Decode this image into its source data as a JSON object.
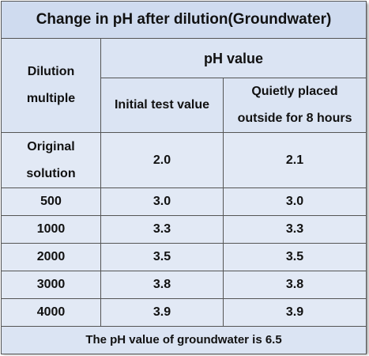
{
  "title": "Change in pH after dilution(Groundwater)",
  "header": {
    "dilution": [
      "Dilution",
      "multiple"
    ],
    "ph_value": "pH value",
    "initial": "Initial test value",
    "placed": [
      "Quietly placed",
      "outside for 8 hours"
    ]
  },
  "rows": [
    [
      [
        "Original",
        "solution"
      ],
      "2.0",
      "2.1"
    ],
    [
      "500",
      "3.0",
      "3.0"
    ],
    [
      "1000",
      "3.3",
      "3.3"
    ],
    [
      "2000",
      "3.5",
      "3.5"
    ],
    [
      "3000",
      "3.8",
      "3.8"
    ],
    [
      "4000",
      "3.9",
      "3.9"
    ]
  ],
  "footer": "The pH value of groundwater is 6.5"
}
